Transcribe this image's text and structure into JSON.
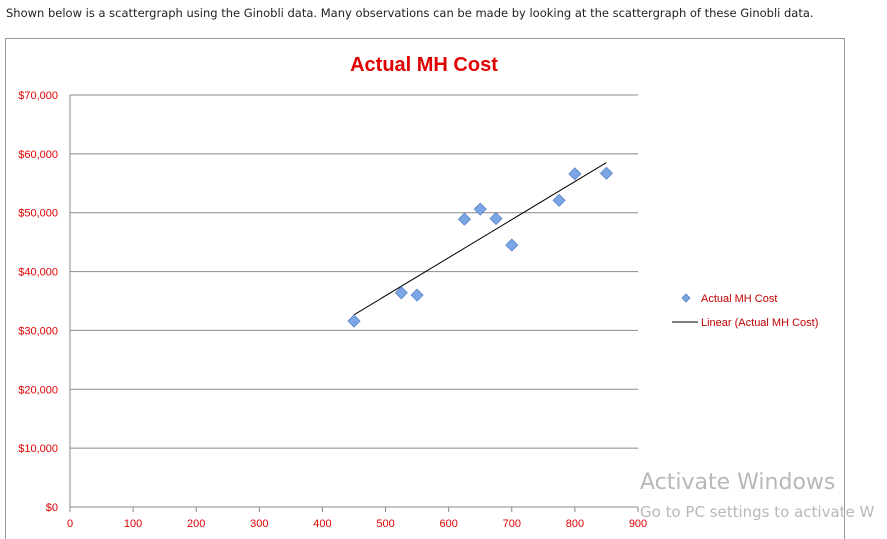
{
  "intro_text": "Shown below is a scattergraph using the Ginobli data. Many observations can be made by looking at the scattergraph of these Ginobli data.",
  "watermark": {
    "line1": "Activate Windows",
    "line2": "Go to PC settings to activate W"
  },
  "chart_data": {
    "type": "scatter",
    "title": "Actual MH Cost",
    "xlim": [
      0,
      900
    ],
    "ylim": [
      0,
      70000
    ],
    "x_ticks": [
      "0",
      "100",
      "200",
      "300",
      "400",
      "500",
      "600",
      "700",
      "800",
      "900"
    ],
    "y_ticks": [
      "$0",
      "$10,000",
      "$20,000",
      "$30,000",
      "$40,000",
      "$50,000",
      "$60,000",
      "$70,000"
    ],
    "grid": "horizontal",
    "legend_position": "right",
    "colors": {
      "title": "#e00000",
      "ticks": "#e00000",
      "marker": "#7aa6e6",
      "trendline": "#000000",
      "legend_text": "#c00000"
    },
    "series": [
      {
        "name": "Actual MH Cost",
        "x": [
          450,
          525,
          550,
          625,
          650,
          675,
          700,
          775,
          800,
          850
        ],
        "y": [
          31600,
          36400,
          36000,
          48900,
          50600,
          49000,
          44500,
          52100,
          56600,
          56700
        ]
      }
    ],
    "trendline": {
      "name": "Linear (Actual MH Cost)",
      "type": "linear"
    }
  }
}
